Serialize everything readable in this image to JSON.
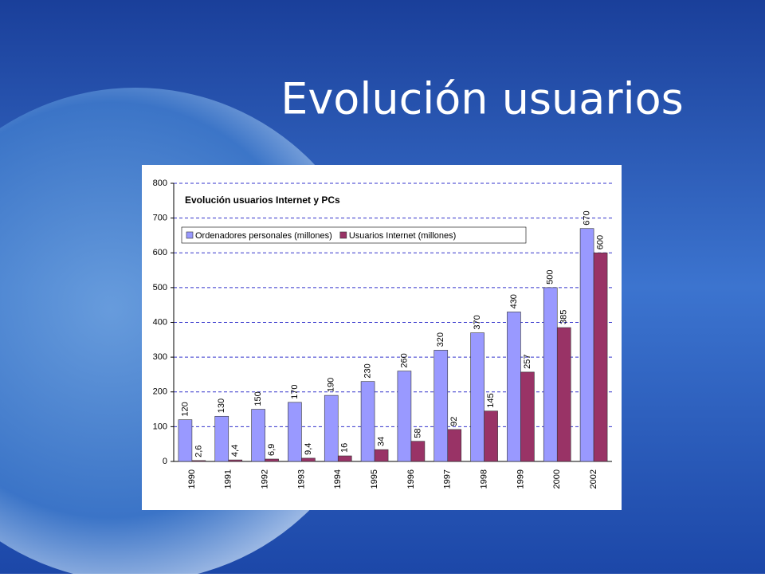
{
  "slide": {
    "title": "Evolución usuarios"
  },
  "chart_data": {
    "type": "bar",
    "title": "Evolución usuarios Internet y PCs",
    "categories": [
      "1990",
      "1991",
      "1992",
      "1993",
      "1994",
      "1995",
      "1996",
      "1997",
      "1998",
      "1999",
      "2000",
      "2002"
    ],
    "series": [
      {
        "name": "Ordenadores personales (millones)",
        "color": "#9999ff",
        "values": [
          120,
          130,
          150,
          170,
          190,
          230,
          260,
          320,
          370,
          430,
          500,
          670
        ]
      },
      {
        "name": "Usuarios Internet (millones)",
        "color": "#993366",
        "values": [
          2.6,
          4.4,
          6.9,
          9.4,
          16,
          34,
          58,
          92,
          145,
          257,
          385,
          600
        ],
        "value_labels": [
          "2,6",
          "4,4",
          "6,9",
          "9,4",
          "16",
          "34",
          "58",
          "92",
          "145",
          "257",
          "385",
          "600"
        ]
      }
    ],
    "ylim": [
      0,
      800
    ],
    "yticks": [
      0,
      100,
      200,
      300,
      400,
      500,
      600,
      700,
      800
    ],
    "grid": true,
    "legend": "top-left"
  }
}
